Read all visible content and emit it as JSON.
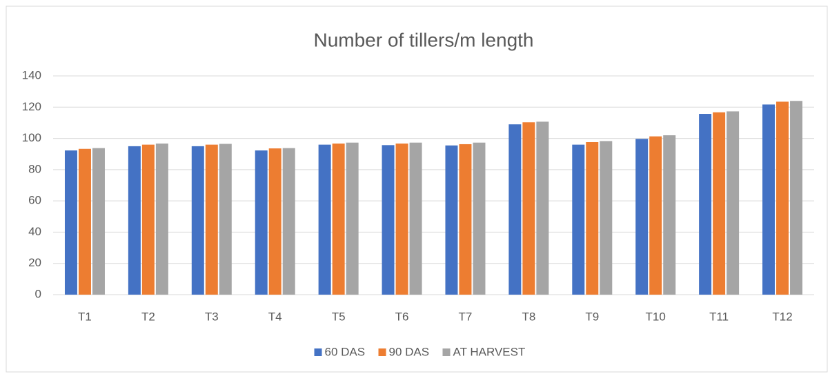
{
  "chart_data": {
    "type": "bar",
    "title": "Number of tillers/m length",
    "categories": [
      "T1",
      "T2",
      "T3",
      "T4",
      "T5",
      "T6",
      "T7",
      "T8",
      "T9",
      "T10",
      "T11",
      "T12"
    ],
    "series": [
      {
        "name": "60 DAS",
        "color": "#4472c4",
        "values": [
          92.3,
          95,
          95,
          92.3,
          96,
          95.7,
          95.5,
          109,
          96,
          99.7,
          115.7,
          121.7
        ]
      },
      {
        "name": "90 DAS",
        "color": "#ed7d31",
        "values": [
          93.3,
          96,
          96,
          93.6,
          96.7,
          96.7,
          96.3,
          110.3,
          97.6,
          101.3,
          116.7,
          123.5
        ]
      },
      {
        "name": "AT HARVEST",
        "color": "#a5a5a5",
        "values": [
          93.8,
          96.7,
          96.5,
          93.8,
          97.3,
          97.3,
          97.3,
          110.7,
          98.3,
          102,
          117.3,
          124
        ]
      }
    ],
    "ylim": [
      0,
      140
    ],
    "yticks": [
      0,
      20,
      40,
      60,
      80,
      100,
      120,
      140
    ],
    "grid": true,
    "legend": "bottom"
  }
}
